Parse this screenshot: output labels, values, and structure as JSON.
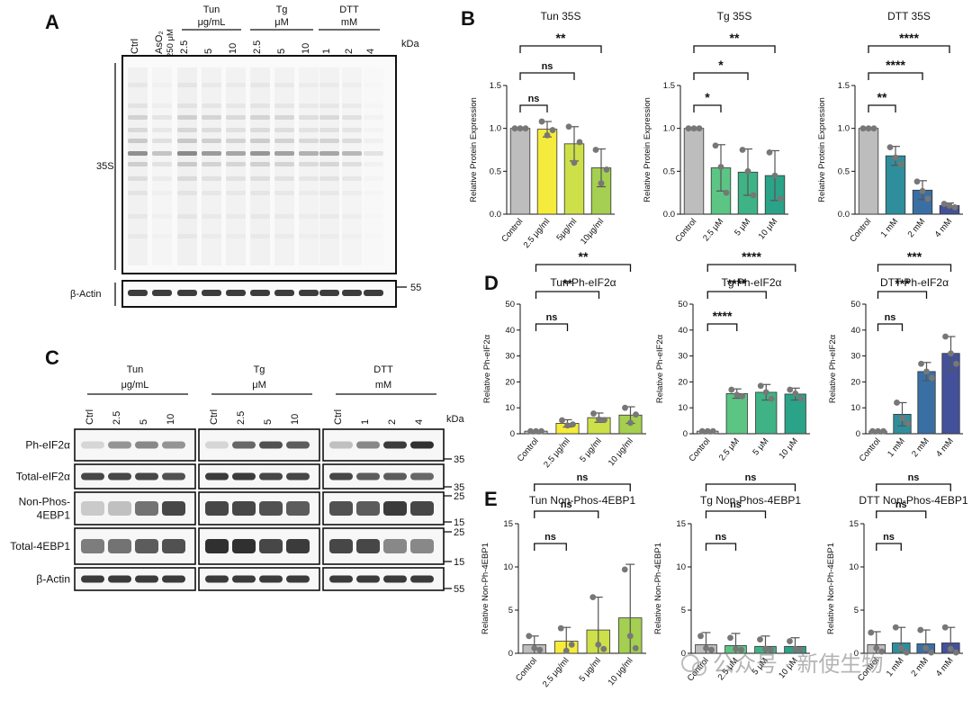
{
  "panels": {
    "a": "A",
    "b": "B",
    "c": "C",
    "d": "D",
    "e": "E"
  },
  "panel_a": {
    "lanes": [
      "Ctrl",
      "AsO₂",
      "2.5",
      "5",
      "10",
      "2.5",
      "5",
      "10",
      "1",
      "2",
      "4"
    ],
    "aso2_conc": "250 μM",
    "groups": [
      {
        "name": "Tun",
        "unit": "μg/mL"
      },
      {
        "name": "Tg",
        "unit": "μM"
      },
      {
        "name": "DTT",
        "unit": "mM"
      }
    ],
    "kda": "kDa",
    "s35_label": "35S",
    "actin_label": "β-Actin",
    "marker_55": "55"
  },
  "panel_c": {
    "groups": [
      {
        "name": "Tun",
        "unit": "μg/mL",
        "lanes": [
          "Ctrl",
          "2.5",
          "5",
          "10"
        ]
      },
      {
        "name": "Tg",
        "unit": "μM",
        "lanes": [
          "Ctrl",
          "2.5",
          "5",
          "10"
        ]
      },
      {
        "name": "DTT",
        "unit": "mM",
        "lanes": [
          "Ctrl",
          "1",
          "2",
          "4"
        ]
      }
    ],
    "kda": "kDa",
    "rows": [
      {
        "label": "Ph-eIF2α",
        "markers": [
          "35"
        ]
      },
      {
        "label": "Total-eIF2α",
        "markers": [
          "35"
        ]
      },
      {
        "label": "Non-Phos-\n4EBP1",
        "markers": [
          "25",
          "15"
        ]
      },
      {
        "label": "Total-4EBP1",
        "markers": [
          "25",
          "15"
        ]
      },
      {
        "label": "β-Actin",
        "markers": [
          "55"
        ]
      }
    ]
  },
  "watermark": "公众号 · 新使生物",
  "chart_data": [
    {
      "type": "bar",
      "panel": "B",
      "title": "Tun 35S",
      "ylabel": "Relative Protein Expression",
      "ylim": [
        0,
        1.5
      ],
      "yticks": [
        "0.0",
        "0.5",
        "1.0",
        "1.5"
      ],
      "categories": [
        "Control",
        "2.5 μg/ml",
        "5μg/ml",
        "10μg/ml"
      ],
      "values": [
        1.0,
        0.99,
        0.82,
        0.54
      ],
      "errors": [
        0.01,
        0.09,
        0.2,
        0.22
      ],
      "points": [
        [
          1.0,
          1.0,
          1.0
        ],
        [
          1.08,
          0.92,
          0.98
        ],
        [
          1.02,
          0.6,
          0.84
        ],
        [
          0.75,
          0.36,
          0.52
        ]
      ],
      "colors": [
        "#bdbdbd",
        "#f5eb3c",
        "#cde04a",
        "#a4cf50"
      ],
      "comparisons": [
        {
          "to": 1,
          "label": "ns"
        },
        {
          "to": 2,
          "label": "ns"
        },
        {
          "to": 3,
          "label": "**"
        }
      ]
    },
    {
      "type": "bar",
      "panel": "B",
      "title": "Tg 35S",
      "ylabel": "Relative Protein Expression",
      "ylim": [
        0,
        1.5
      ],
      "yticks": [
        "0.0",
        "0.5",
        "1.0",
        "1.5"
      ],
      "categories": [
        "Control",
        "2.5 μM",
        "5 μM",
        "10 μM"
      ],
      "values": [
        1.0,
        0.54,
        0.49,
        0.45
      ],
      "errors": [
        0.01,
        0.27,
        0.27,
        0.29
      ],
      "points": [
        [
          1.0,
          1.0,
          1.0
        ],
        [
          0.8,
          0.55,
          0.25
        ],
        [
          0.75,
          0.5,
          0.22
        ],
        [
          0.72,
          0.45,
          0.18
        ]
      ],
      "colors": [
        "#bdbdbd",
        "#5cc584",
        "#3fb385",
        "#2aa388"
      ],
      "comparisons": [
        {
          "to": 1,
          "label": "*"
        },
        {
          "to": 2,
          "label": "*"
        },
        {
          "to": 3,
          "label": "**"
        }
      ]
    },
    {
      "type": "bar",
      "panel": "B",
      "title": "DTT 35S",
      "ylabel": "Relative Protein Expression",
      "ylim": [
        0,
        1.5
      ],
      "yticks": [
        "0.0",
        "0.5",
        "1.0",
        "1.5"
      ],
      "categories": [
        "Control",
        "1 mM",
        "2 mM",
        "4 mM"
      ],
      "values": [
        1.0,
        0.68,
        0.28,
        0.1
      ],
      "errors": [
        0.01,
        0.11,
        0.11,
        0.03
      ],
      "points": [
        [
          1.0,
          1.0,
          1.0
        ],
        [
          0.78,
          0.66,
          0.58
        ],
        [
          0.38,
          0.27,
          0.18
        ],
        [
          0.12,
          0.1,
          0.08
        ]
      ],
      "colors": [
        "#bdbdbd",
        "#2f8e9b",
        "#3a6fa3",
        "#44519a"
      ],
      "comparisons": [
        {
          "to": 1,
          "label": "**"
        },
        {
          "to": 2,
          "label": "****"
        },
        {
          "to": 3,
          "label": "****"
        }
      ]
    },
    {
      "type": "bar",
      "panel": "D",
      "title": "Tun Ph-eIF2α",
      "ylabel": "Relative Ph-eIF2α",
      "ylim": [
        0,
        50
      ],
      "yticks": [
        "0",
        "10",
        "20",
        "30",
        "40",
        "50"
      ],
      "categories": [
        "Control",
        "2.5 μg/ml",
        "5 μg/ml",
        "10 μg/ml"
      ],
      "values": [
        1.0,
        4.0,
        6.2,
        7.2
      ],
      "errors": [
        0.3,
        1.4,
        1.8,
        3.2
      ],
      "points": [
        [
          1.0,
          1.0,
          1.0
        ],
        [
          5.2,
          3.2,
          3.6
        ],
        [
          7.8,
          5.5,
          5.3
        ],
        [
          10.0,
          4.2,
          7.4
        ]
      ],
      "colors": [
        "#bdbdbd",
        "#f5eb3c",
        "#cde04a",
        "#a4cf50"
      ],
      "comparisons": [
        {
          "to": 1,
          "label": "ns"
        },
        {
          "to": 2,
          "label": "**"
        },
        {
          "to": 3,
          "label": "**"
        }
      ]
    },
    {
      "type": "bar",
      "panel": "D",
      "title": "Tg Ph-eIF2α",
      "ylabel": "Relative Ph-eIF2α",
      "ylim": [
        0,
        50
      ],
      "yticks": [
        "0",
        "10",
        "20",
        "30",
        "40",
        "50"
      ],
      "categories": [
        "Control",
        "2.5 μM",
        "5 μM",
        "10 μM"
      ],
      "values": [
        1.0,
        15.5,
        16.0,
        15.3
      ],
      "errors": [
        0.3,
        1.8,
        3.0,
        2.3
      ],
      "points": [
        [
          1.0,
          1.0,
          1.0
        ],
        [
          17.0,
          15.0,
          14.5
        ],
        [
          18.5,
          16.0,
          13.5
        ],
        [
          17.0,
          15.5,
          13.5
        ]
      ],
      "colors": [
        "#bdbdbd",
        "#5cc584",
        "#3fb385",
        "#2aa388"
      ],
      "comparisons": [
        {
          "to": 1,
          "label": "****"
        },
        {
          "to": 2,
          "label": "****"
        },
        {
          "to": 3,
          "label": "****"
        }
      ]
    },
    {
      "type": "bar",
      "panel": "D",
      "title": "DTT Ph-eIF2α",
      "ylabel": "Relative Ph-eIF2α",
      "ylim": [
        0,
        50
      ],
      "yticks": [
        "0",
        "10",
        "20",
        "30",
        "40",
        "50"
      ],
      "categories": [
        "Control",
        "1 mM",
        "2 mM",
        "4 mM"
      ],
      "values": [
        1.0,
        7.5,
        24.0,
        31.0
      ],
      "errors": [
        0.3,
        4.5,
        3.5,
        6.5
      ],
      "points": [
        [
          1.0,
          1.0,
          1.0
        ],
        [
          12.0,
          6.0,
          4.0
        ],
        [
          27.0,
          24.0,
          21.5
        ],
        [
          37.5,
          31.0,
          27.0
        ]
      ],
      "colors": [
        "#bdbdbd",
        "#2f8e9b",
        "#3a6fa3",
        "#44519a"
      ],
      "comparisons": [
        {
          "to": 1,
          "label": "ns"
        },
        {
          "to": 2,
          "label": "***"
        },
        {
          "to": 3,
          "label": "***"
        }
      ]
    },
    {
      "type": "bar",
      "panel": "E",
      "title": "Tun Non-Phos-4EBP1",
      "ylabel": "Relative Non-Ph-4EBP1",
      "ylim": [
        0,
        15
      ],
      "yticks": [
        "0",
        "5",
        "10",
        "15"
      ],
      "categories": [
        "Control",
        "2.5 μg/ml",
        "5 μg/ml",
        "10 μg/ml"
      ],
      "values": [
        1.0,
        1.4,
        2.7,
        4.1
      ],
      "errors": [
        1.0,
        1.6,
        3.8,
        6.2
      ],
      "points": [
        [
          2.0,
          0.6,
          0.4
        ],
        [
          2.9,
          0.3,
          1.0
        ],
        [
          6.5,
          1.0,
          0.5
        ],
        [
          9.7,
          2.0,
          0.6
        ]
      ],
      "colors": [
        "#bdbdbd",
        "#f5eb3c",
        "#cde04a",
        "#a4cf50"
      ],
      "comparisons": [
        {
          "to": 1,
          "label": "ns"
        },
        {
          "to": 2,
          "label": "ns"
        },
        {
          "to": 3,
          "label": "ns"
        }
      ]
    },
    {
      "type": "bar",
      "panel": "E",
      "title": "Tg Non-Phos-4EBP1",
      "ylabel": "Relative Non-Ph-4EBP1",
      "ylim": [
        0,
        15
      ],
      "yticks": [
        "0",
        "5",
        "10",
        "15"
      ],
      "categories": [
        "Control",
        "2.5 μM",
        "5 μM",
        "10 μM"
      ],
      "values": [
        1.0,
        0.9,
        0.8,
        0.8
      ],
      "errors": [
        1.4,
        1.4,
        1.2,
        1.0
      ],
      "points": [
        [
          2.0,
          0.6,
          0.4
        ],
        [
          1.8,
          0.5,
          0.4
        ],
        [
          1.6,
          0.5,
          0.4
        ],
        [
          1.4,
          0.5,
          0.4
        ]
      ],
      "colors": [
        "#bdbdbd",
        "#5cc584",
        "#3fb385",
        "#2aa388"
      ],
      "comparisons": [
        {
          "to": 1,
          "label": "ns"
        },
        {
          "to": 2,
          "label": "ns"
        },
        {
          "to": 3,
          "label": "ns"
        }
      ]
    },
    {
      "type": "bar",
      "panel": "E",
      "title": "DTT Non-Phos-4EBP1",
      "ylabel": "Relative Non-Ph-4EBP1",
      "ylim": [
        0,
        15
      ],
      "yticks": [
        "0",
        "5",
        "10",
        "15"
      ],
      "categories": [
        "Control",
        "1 mM",
        "2 mM",
        "4 mM"
      ],
      "values": [
        1.0,
        1.2,
        1.1,
        1.2
      ],
      "errors": [
        1.5,
        1.8,
        1.6,
        1.8
      ],
      "points": [
        [
          2.4,
          0.6,
          0.2
        ],
        [
          3.0,
          0.6,
          0.1
        ],
        [
          2.7,
          0.6,
          0.1
        ],
        [
          3.0,
          0.5,
          0.1
        ]
      ],
      "colors": [
        "#bdbdbd",
        "#2f8e9b",
        "#3a6fa3",
        "#44519a"
      ],
      "comparisons": [
        {
          "to": 1,
          "label": "ns"
        },
        {
          "to": 2,
          "label": "ns"
        },
        {
          "to": 3,
          "label": "ns"
        }
      ]
    }
  ]
}
